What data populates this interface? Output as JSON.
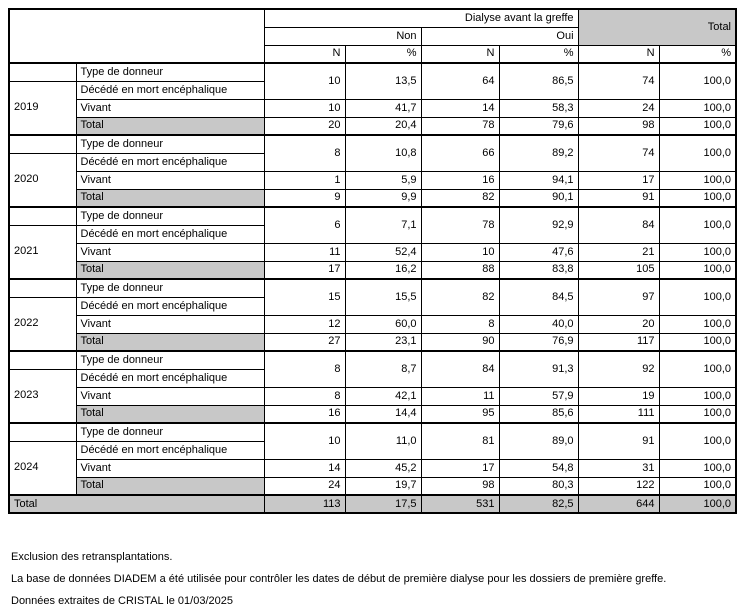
{
  "table": {
    "header": {
      "group_label": "Dialyse avant la greffe",
      "col_groups": [
        "Non",
        "Oui"
      ],
      "total_label": "Total",
      "n_label": "N",
      "pct_label": "%"
    },
    "row_labels": {
      "type": "Type de donneur",
      "deceased": "Décédé en mort encéphalique",
      "living": "Vivant",
      "total": "Total"
    },
    "blocks": [
      {
        "year": "2019",
        "deceased": [
          "10",
          "13,5",
          "64",
          "86,5",
          "74",
          "100,0"
        ],
        "living": [
          "10",
          "41,7",
          "14",
          "58,3",
          "24",
          "100,0"
        ],
        "total": [
          "20",
          "20,4",
          "78",
          "79,6",
          "98",
          "100,0"
        ]
      },
      {
        "year": "2020",
        "deceased": [
          "8",
          "10,8",
          "66",
          "89,2",
          "74",
          "100,0"
        ],
        "living": [
          "1",
          "5,9",
          "16",
          "94,1",
          "17",
          "100,0"
        ],
        "total": [
          "9",
          "9,9",
          "82",
          "90,1",
          "91",
          "100,0"
        ]
      },
      {
        "year": "2021",
        "deceased": [
          "6",
          "7,1",
          "78",
          "92,9",
          "84",
          "100,0"
        ],
        "living": [
          "11",
          "52,4",
          "10",
          "47,6",
          "21",
          "100,0"
        ],
        "total": [
          "17",
          "16,2",
          "88",
          "83,8",
          "105",
          "100,0"
        ]
      },
      {
        "year": "2022",
        "deceased": [
          "15",
          "15,5",
          "82",
          "84,5",
          "97",
          "100,0"
        ],
        "living": [
          "12",
          "60,0",
          "8",
          "40,0",
          "20",
          "100,0"
        ],
        "total": [
          "27",
          "23,1",
          "90",
          "76,9",
          "117",
          "100,0"
        ]
      },
      {
        "year": "2023",
        "deceased": [
          "8",
          "8,7",
          "84",
          "91,3",
          "92",
          "100,0"
        ],
        "living": [
          "8",
          "42,1",
          "11",
          "57,9",
          "19",
          "100,0"
        ],
        "total": [
          "16",
          "14,4",
          "95",
          "85,6",
          "111",
          "100,0"
        ]
      },
      {
        "year": "2024",
        "deceased": [
          "10",
          "11,0",
          "81",
          "89,0",
          "91",
          "100,0"
        ],
        "living": [
          "14",
          "45,2",
          "17",
          "54,8",
          "31",
          "100,0"
        ],
        "total": [
          "24",
          "19,7",
          "98",
          "80,3",
          "122",
          "100,0"
        ]
      }
    ],
    "grand_total": {
      "label": "Total",
      "values": [
        "113",
        "17,5",
        "531",
        "82,5",
        "644",
        "100,0"
      ]
    }
  },
  "footnotes": [
    "Exclusion des retransplantations.",
    "La base de données DIADEM a été utilisée pour contrôler les dates de début de première dialyse pour les dossiers de première greffe.",
    "Données extraites de CRISTAL le 01/03/2025"
  ]
}
